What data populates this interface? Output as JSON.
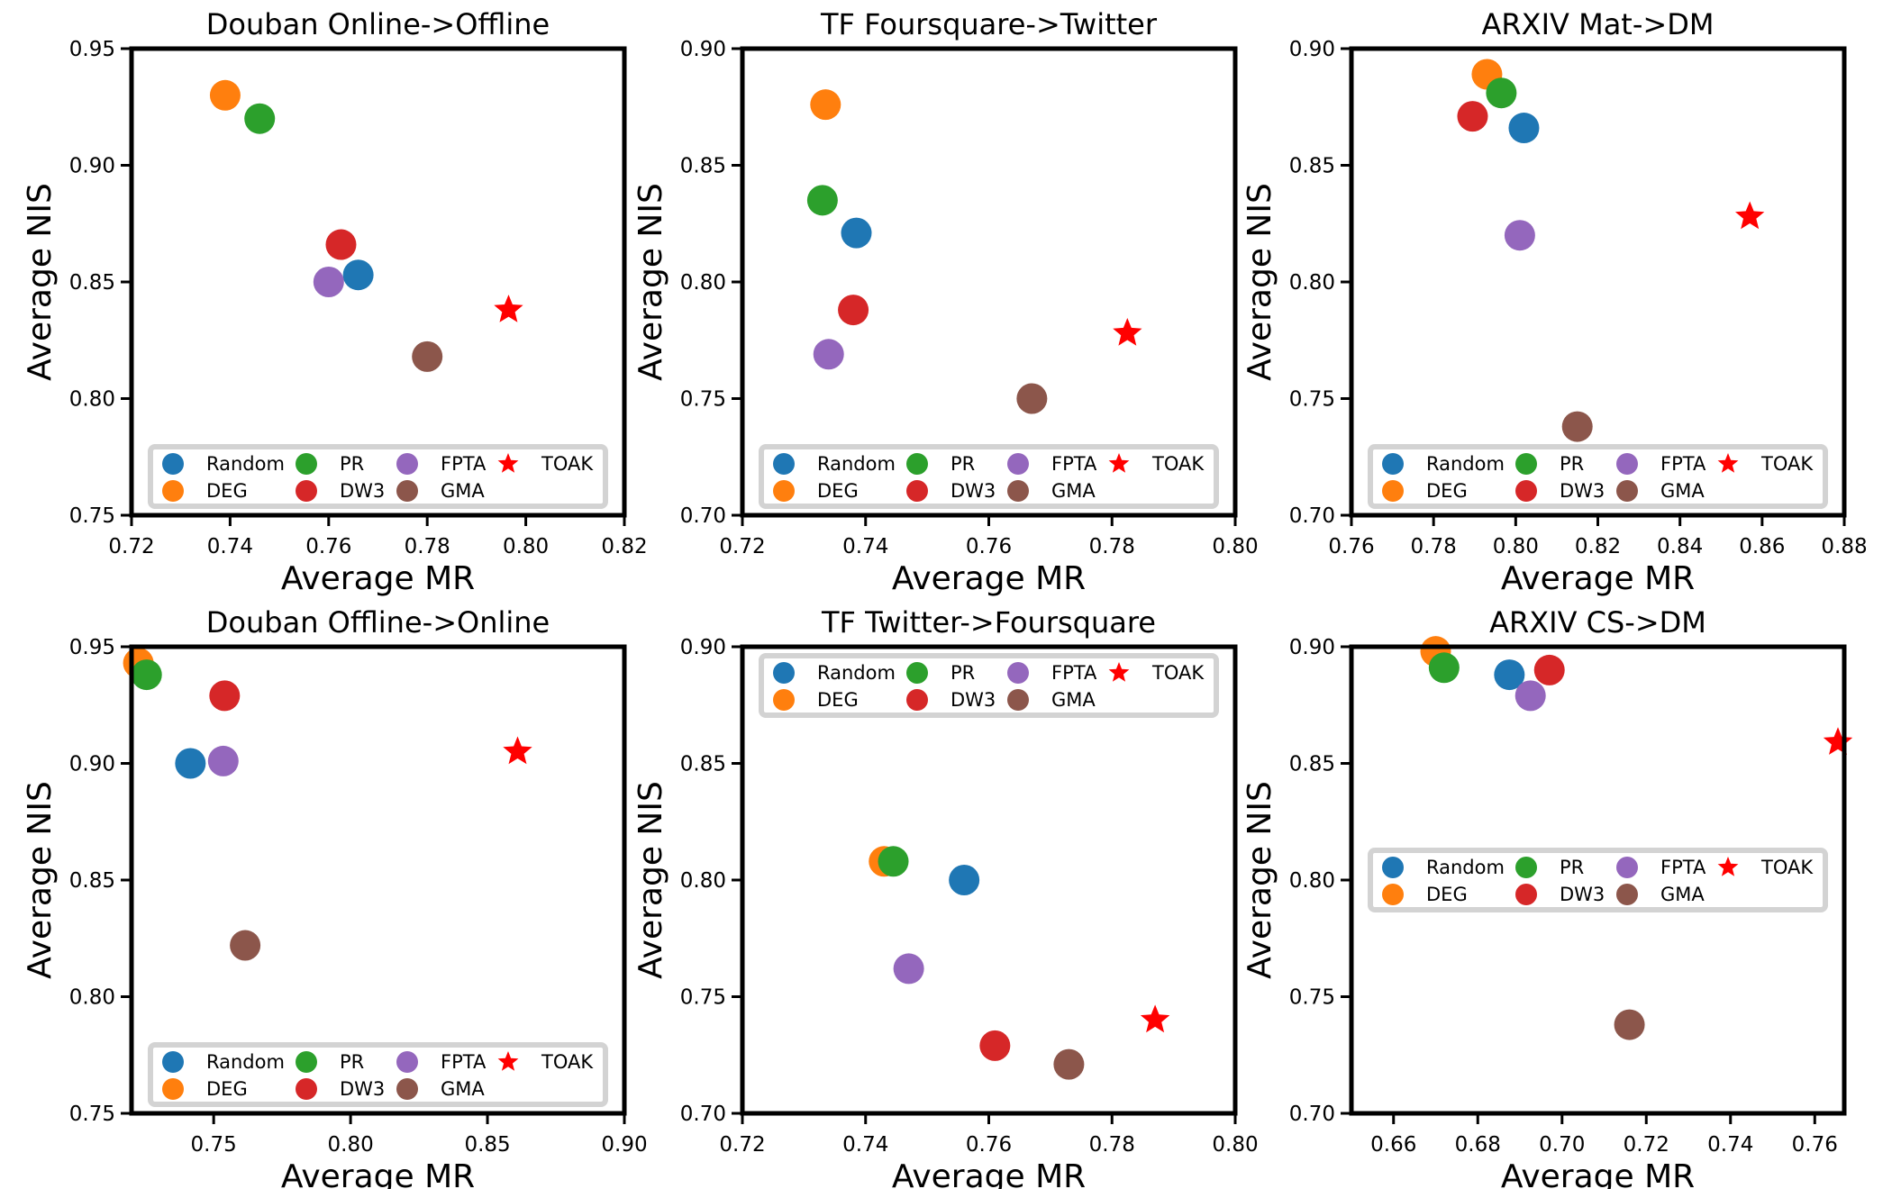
{
  "palette": {
    "Random": "#1f77b4",
    "DEG": "#ff7f0e",
    "PR": "#2ca02c",
    "DW3": "#d62728",
    "FPTA": "#9467bd",
    "GMA": "#8c564b",
    "TOAK": "#ff0000"
  },
  "chart_data": [
    {
      "type": "scatter",
      "title": "Douban Online->Offline",
      "xlabel": "Average MR",
      "ylabel": "Average NIS",
      "xlim": [
        0.72,
        0.82
      ],
      "ylim": [
        0.75,
        0.95
      ],
      "xticks": [
        "0.72",
        "0.74",
        "0.76",
        "0.78",
        "0.80",
        "0.82"
      ],
      "yticks": [
        "0.75",
        "0.80",
        "0.85",
        "0.90",
        "0.95"
      ],
      "legend_loc": "lower center",
      "series": [
        {
          "name": "Random",
          "x": 0.766,
          "y": 0.853
        },
        {
          "name": "DEG",
          "x": 0.739,
          "y": 0.93
        },
        {
          "name": "PR",
          "x": 0.746,
          "y": 0.92
        },
        {
          "name": "DW3",
          "x": 0.7625,
          "y": 0.866
        },
        {
          "name": "FPTA",
          "x": 0.76,
          "y": 0.85
        },
        {
          "name": "GMA",
          "x": 0.78,
          "y": 0.818
        },
        {
          "name": "TOAK",
          "x": 0.7965,
          "y": 0.838
        }
      ]
    },
    {
      "type": "scatter",
      "title": "TF Foursquare->Twitter",
      "xlabel": "Average MR",
      "ylabel": "Average NIS",
      "xlim": [
        0.72,
        0.8
      ],
      "ylim": [
        0.7,
        0.9
      ],
      "xticks": [
        "0.72",
        "0.74",
        "0.76",
        "0.78",
        "0.80"
      ],
      "yticks": [
        "0.70",
        "0.75",
        "0.80",
        "0.85",
        "0.90"
      ],
      "legend_loc": "lower center",
      "series": [
        {
          "name": "Random",
          "x": 0.7385,
          "y": 0.821
        },
        {
          "name": "DEG",
          "x": 0.7335,
          "y": 0.876
        },
        {
          "name": "PR",
          "x": 0.733,
          "y": 0.835
        },
        {
          "name": "DW3",
          "x": 0.738,
          "y": 0.788
        },
        {
          "name": "FPTA",
          "x": 0.734,
          "y": 0.769
        },
        {
          "name": "GMA",
          "x": 0.767,
          "y": 0.75
        },
        {
          "name": "TOAK",
          "x": 0.7825,
          "y": 0.778
        }
      ]
    },
    {
      "type": "scatter",
      "title": "ARXIV Mat->DM",
      "xlabel": "Average MR",
      "ylabel": "Average NIS",
      "xlim": [
        0.76,
        0.88
      ],
      "ylim": [
        0.7,
        0.9
      ],
      "xticks": [
        "0.76",
        "0.78",
        "0.80",
        "0.82",
        "0.84",
        "0.86",
        "0.88"
      ],
      "yticks": [
        "0.70",
        "0.75",
        "0.80",
        "0.85",
        "0.90"
      ],
      "legend_loc": "lower center",
      "series": [
        {
          "name": "Random",
          "x": 0.802,
          "y": 0.866
        },
        {
          "name": "DEG",
          "x": 0.793,
          "y": 0.889
        },
        {
          "name": "PR",
          "x": 0.7965,
          "y": 0.881
        },
        {
          "name": "DW3",
          "x": 0.7895,
          "y": 0.871
        },
        {
          "name": "FPTA",
          "x": 0.801,
          "y": 0.82
        },
        {
          "name": "GMA",
          "x": 0.815,
          "y": 0.738
        },
        {
          "name": "TOAK",
          "x": 0.857,
          "y": 0.828
        }
      ]
    },
    {
      "type": "scatter",
      "title": "Douban Offline->Online",
      "xlabel": "Average MR",
      "ylabel": "Average NIS",
      "xlim": [
        0.72,
        0.9
      ],
      "ylim": [
        0.75,
        0.95
      ],
      "xticks": [
        "0.75",
        "0.80",
        "0.85",
        "0.90"
      ],
      "yticks": [
        "0.75",
        "0.80",
        "0.85",
        "0.90",
        "0.95"
      ],
      "legend_loc": "lower center",
      "series": [
        {
          "name": "Random",
          "x": 0.7415,
          "y": 0.9
        },
        {
          "name": "DEG",
          "x": 0.7225,
          "y": 0.943
        },
        {
          "name": "PR",
          "x": 0.7255,
          "y": 0.938
        },
        {
          "name": "DW3",
          "x": 0.754,
          "y": 0.929
        },
        {
          "name": "FPTA",
          "x": 0.7535,
          "y": 0.901
        },
        {
          "name": "GMA",
          "x": 0.7615,
          "y": 0.822
        },
        {
          "name": "TOAK",
          "x": 0.861,
          "y": 0.905
        }
      ]
    },
    {
      "type": "scatter",
      "title": "TF Twitter->Foursquare",
      "xlabel": "Average MR",
      "ylabel": "Average NIS",
      "xlim": [
        0.72,
        0.8
      ],
      "ylim": [
        0.7,
        0.9
      ],
      "xticks": [
        "0.72",
        "0.74",
        "0.76",
        "0.78",
        "0.80"
      ],
      "yticks": [
        "0.70",
        "0.75",
        "0.80",
        "0.85",
        "0.90"
      ],
      "legend_loc": "upper center",
      "series": [
        {
          "name": "Random",
          "x": 0.756,
          "y": 0.8
        },
        {
          "name": "DEG",
          "x": 0.743,
          "y": 0.808
        },
        {
          "name": "PR",
          "x": 0.7445,
          "y": 0.808
        },
        {
          "name": "DW3",
          "x": 0.761,
          "y": 0.729
        },
        {
          "name": "FPTA",
          "x": 0.747,
          "y": 0.762
        },
        {
          "name": "GMA",
          "x": 0.773,
          "y": 0.721
        },
        {
          "name": "TOAK",
          "x": 0.787,
          "y": 0.74
        }
      ]
    },
    {
      "type": "scatter",
      "title": "ARXIV CS->DM",
      "xlabel": "Average MR",
      "ylabel": "Average NIS",
      "xlim": [
        0.65,
        0.767
      ],
      "ylim": [
        0.7,
        0.9
      ],
      "xticks": [
        "0.66",
        "0.68",
        "0.70",
        "0.72",
        "0.74",
        "0.76"
      ],
      "yticks": [
        "0.70",
        "0.75",
        "0.80",
        "0.85",
        "0.90"
      ],
      "legend_loc": "center",
      "series": [
        {
          "name": "Random",
          "x": 0.6875,
          "y": 0.888
        },
        {
          "name": "DEG",
          "x": 0.67,
          "y": 0.898
        },
        {
          "name": "PR",
          "x": 0.672,
          "y": 0.891
        },
        {
          "name": "DW3",
          "x": 0.697,
          "y": 0.89
        },
        {
          "name": "FPTA",
          "x": 0.6925,
          "y": 0.879
        },
        {
          "name": "GMA",
          "x": 0.716,
          "y": 0.738
        },
        {
          "name": "TOAK",
          "x": 0.7655,
          "y": 0.859
        }
      ]
    }
  ]
}
